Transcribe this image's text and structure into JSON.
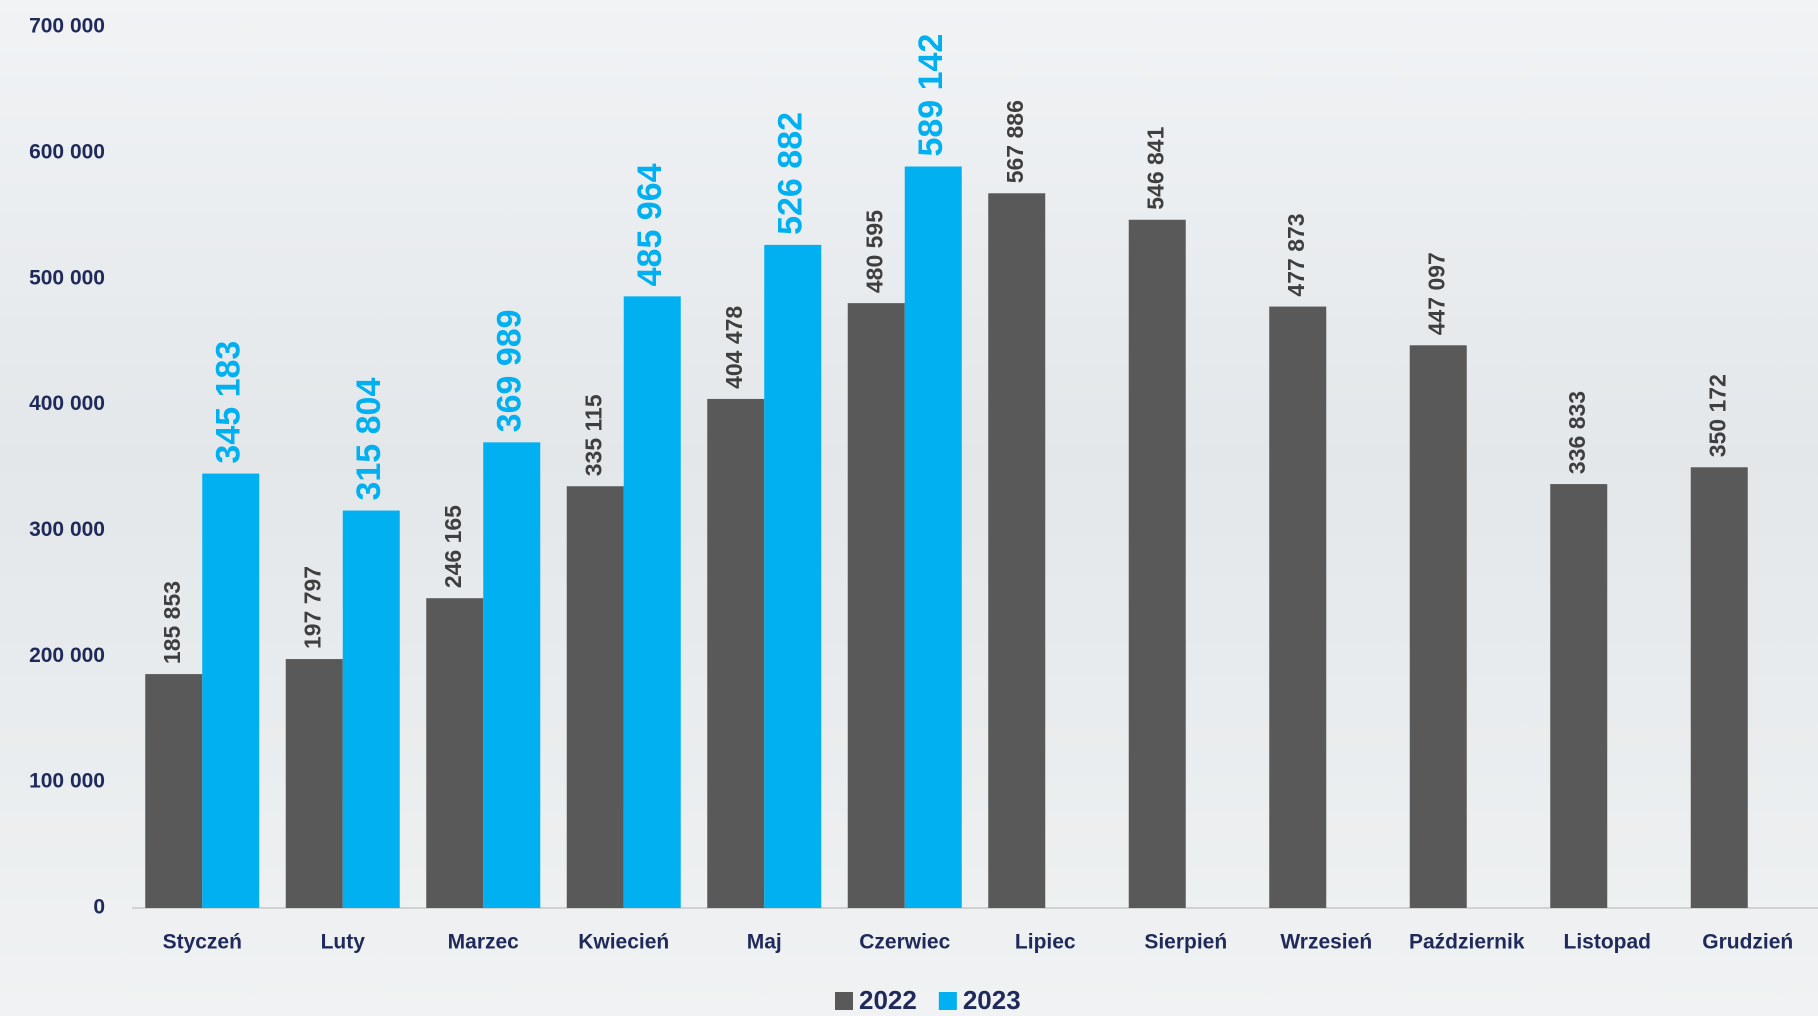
{
  "chart_data": {
    "type": "bar",
    "categories": [
      "Styczeń",
      "Luty",
      "Marzec",
      "Kwiecień",
      "Maj",
      "Czerwiec",
      "Lipiec",
      "Sierpień",
      "Wrzesień",
      "Październik",
      "Listopad",
      "Grudzień"
    ],
    "series": [
      {
        "name": "2022",
        "color": "#595959",
        "values": [
          185853,
          197797,
          246165,
          335115,
          404478,
          480595,
          567886,
          546841,
          477873,
          447097,
          336833,
          350172
        ],
        "value_labels": [
          "185 853",
          "197 797",
          "246 165",
          "335 115",
          "404 478",
          "480 595",
          "567 886",
          "546 841",
          "477 873",
          "447 097",
          "336 833",
          "350 172"
        ]
      },
      {
        "name": "2023",
        "color": "#00b0f0",
        "values": [
          345183,
          315804,
          369989,
          485964,
          526882,
          589142,
          null,
          null,
          null,
          null,
          null,
          null
        ],
        "value_labels": [
          "345 183",
          "315 804",
          "369 989",
          "485 964",
          "526 882",
          "589 142",
          null,
          null,
          null,
          null,
          null,
          null
        ]
      }
    ],
    "ylim": [
      0,
      700000
    ],
    "yticks": [
      {
        "value": 0,
        "label": "0"
      },
      {
        "value": 100000,
        "label": "100 000"
      },
      {
        "value": 200000,
        "label": "200 000"
      },
      {
        "value": 300000,
        "label": "300 000"
      },
      {
        "value": 400000,
        "label": "400 000"
      },
      {
        "value": 500000,
        "label": "500 000"
      },
      {
        "value": 600000,
        "label": "600 000"
      },
      {
        "value": 700000,
        "label": "700 000"
      }
    ],
    "grid": false,
    "legend": "bottom"
  }
}
